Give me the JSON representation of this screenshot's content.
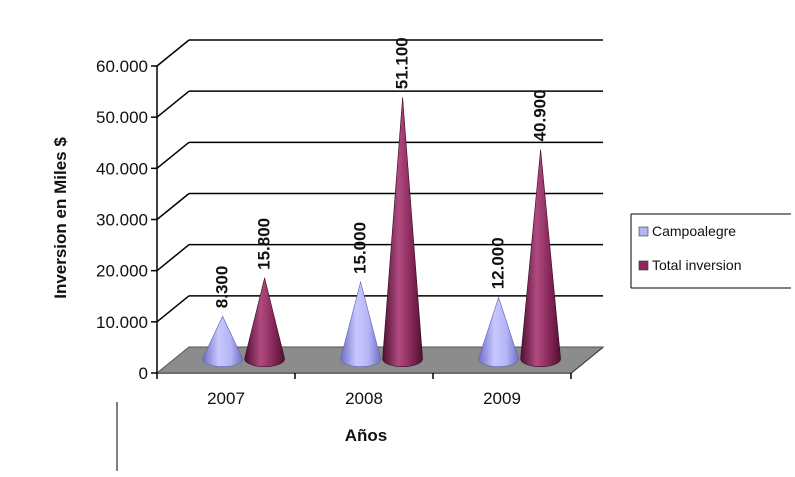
{
  "chart_data": {
    "type": "bar",
    "style": "3d-cone",
    "categories": [
      "2007",
      "2008",
      "2009"
    ],
    "series": [
      {
        "name": "Campoalegre",
        "values": [
          8300,
          15000,
          12000
        ],
        "labels": [
          "8.300",
          "15.000",
          "12.000"
        ],
        "color": "#b4b4f4"
      },
      {
        "name": "Total inversion",
        "values": [
          15800,
          51100,
          40900
        ],
        "labels": [
          "15.800",
          "51.100",
          "40.900"
        ],
        "color": "#8b2a5c"
      }
    ],
    "yticks": [
      0,
      10000,
      20000,
      30000,
      40000,
      50000,
      60000
    ],
    "yticklabels": [
      "0",
      "10.000",
      "20.000",
      "30.000",
      "40.000",
      "50.000",
      "60.000"
    ],
    "ylim": [
      0,
      60000
    ],
    "xlabel": "Años",
    "ylabel": "Inversion en Miles $",
    "grid": true,
    "legend_position": "right",
    "floor_color": "#8c8c8c"
  }
}
